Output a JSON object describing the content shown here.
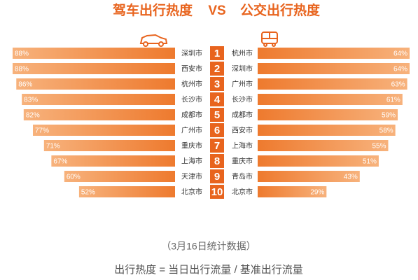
{
  "chart_data": {
    "type": "butterfly",
    "ranks": [
      "1",
      "2",
      "3",
      "4",
      "5",
      "6",
      "7",
      "8",
      "9",
      "10"
    ],
    "vs": "VS",
    "series": [
      {
        "name": "驾车出行热度",
        "color": "#ee7a2e",
        "categories": [
          "深圳市",
          "西安市",
          "杭州市",
          "长沙市",
          "成都市",
          "广州市",
          "重庆市",
          "上海市",
          "天津市",
          "北京市"
        ],
        "values": [
          88,
          88,
          86,
          83,
          82,
          77,
          71,
          67,
          60,
          52
        ],
        "value_labels": [
          "88%",
          "88%",
          "86%",
          "83%",
          "82%",
          "77%",
          "71%",
          "67%",
          "60%",
          "52%"
        ]
      },
      {
        "name": "公交出行热度",
        "color": "#ee7a2e",
        "categories": [
          "杭州市",
          "深圳市",
          "广州市",
          "长沙市",
          "成都市",
          "西安市",
          "上海市",
          "重庆市",
          "青岛市",
          "北京市"
        ],
        "values": [
          64,
          64,
          63,
          61,
          59,
          58,
          55,
          51,
          43,
          29
        ],
        "value_labels": [
          "64%",
          "64%",
          "63%",
          "61%",
          "59%",
          "58%",
          "55%",
          "51%",
          "43%",
          "29%"
        ]
      }
    ],
    "note": "（3月16日统计数据）",
    "formula": "出行热度 = 当日出行流量 / 基准出行流量"
  }
}
